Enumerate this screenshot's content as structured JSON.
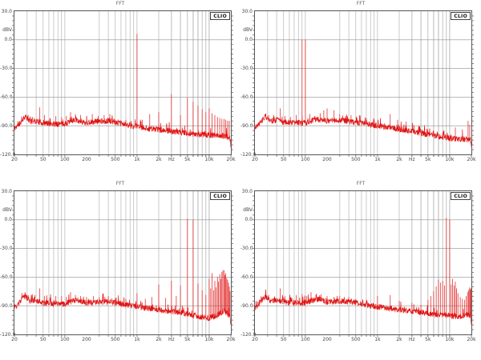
{
  "page": {
    "background": "#ffffff"
  },
  "plot_common": {
    "title": "FFT",
    "brand": "CLIO",
    "y_unit": "dBV",
    "y_ticks": [
      {
        "db": 30,
        "label": "30.0"
      },
      {
        "db": 0,
        "label": "0.0"
      },
      {
        "db": -30,
        "label": "-30.0"
      },
      {
        "db": -60,
        "label": "-60.0"
      },
      {
        "db": -90,
        "label": "-90.0"
      },
      {
        "db": -120,
        "label": "-120.0"
      }
    ],
    "x_ticks": [
      {
        "f": 20,
        "label": "20"
      },
      {
        "f": 50,
        "label": "50"
      },
      {
        "f": 100,
        "label": "100"
      },
      {
        "f": 200,
        "label": "200"
      },
      {
        "f": 500,
        "label": "500"
      },
      {
        "f": 1000,
        "label": "1k"
      },
      {
        "f": 2000,
        "label": "2k"
      },
      {
        "f": 3000,
        "label": "Hz"
      },
      {
        "f": 5000,
        "label": "5k"
      },
      {
        "f": 10000,
        "label": "10k"
      },
      {
        "f": 20000,
        "label": "20k"
      }
    ],
    "colors": {
      "trace": "#e01414",
      "grid_vertical": "#a8a8a8",
      "grid_horizontal": "#8f8f8f",
      "frame": "#555555",
      "text": "#444444",
      "title_text": "#606060"
    }
  },
  "chart_data": [
    {
      "type": "line",
      "position": "top-left",
      "title": "FFT",
      "xlabel": "Hz",
      "ylabel": "dBV",
      "x_log": true,
      "xlim": [
        20,
        20000
      ],
      "ylim": [
        -120,
        30
      ],
      "grid": true,
      "seed": 11,
      "jitter_db": 3,
      "floor": [
        [
          20,
          -93
        ],
        [
          24,
          -87
        ],
        [
          28,
          -80
        ],
        [
          33,
          -85
        ],
        [
          40,
          -85
        ],
        [
          50,
          -87
        ],
        [
          70,
          -88
        ],
        [
          100,
          -88
        ],
        [
          140,
          -84
        ],
        [
          200,
          -87
        ],
        [
          300,
          -85
        ],
        [
          450,
          -85
        ],
        [
          700,
          -89
        ],
        [
          1000,
          -91
        ],
        [
          1500,
          -93
        ],
        [
          2500,
          -95
        ],
        [
          4000,
          -97
        ],
        [
          7000,
          -99
        ],
        [
          12000,
          -100
        ],
        [
          17000,
          -101
        ],
        [
          19500,
          -103
        ],
        [
          20000,
          -113
        ]
      ],
      "peaks": [
        [
          31,
          -79
        ],
        [
          45,
          -71
        ],
        [
          52,
          -79
        ],
        [
          62,
          -82
        ],
        [
          75,
          -80
        ],
        [
          90,
          -81
        ],
        [
          105,
          -80
        ],
        [
          120,
          -76
        ],
        [
          140,
          -78
        ],
        [
          165,
          -79
        ],
        [
          200,
          -80
        ],
        [
          240,
          -78
        ],
        [
          290,
          -80
        ],
        [
          350,
          -79
        ],
        [
          420,
          -78
        ],
        [
          700,
          -84
        ],
        [
          1000,
          6
        ],
        [
          1180,
          -84
        ],
        [
          1500,
          -78
        ],
        [
          2000,
          -76
        ],
        [
          3000,
          -57
        ],
        [
          4000,
          -79
        ],
        [
          5000,
          -61
        ],
        [
          6000,
          -65
        ],
        [
          7000,
          -69
        ],
        [
          8000,
          -73
        ],
        [
          9000,
          -76
        ],
        [
          10000,
          -72
        ],
        [
          11000,
          -77
        ],
        [
          12000,
          -79
        ],
        [
          13000,
          -81
        ],
        [
          14000,
          -82
        ],
        [
          15000,
          -83
        ],
        [
          16000,
          -83
        ],
        [
          17000,
          -84
        ],
        [
          18000,
          -85
        ],
        [
          19000,
          -85
        ]
      ]
    },
    {
      "type": "line",
      "position": "top-right",
      "title": "FFT",
      "xlabel": "Hz",
      "ylabel": "dBV",
      "x_log": true,
      "xlim": [
        20,
        20000
      ],
      "ylim": [
        -120,
        30
      ],
      "grid": true,
      "seed": 22,
      "jitter_db": 3,
      "floor": [
        [
          20,
          -92
        ],
        [
          24,
          -86
        ],
        [
          28,
          -80
        ],
        [
          33,
          -85
        ],
        [
          40,
          -84
        ],
        [
          50,
          -86
        ],
        [
          70,
          -87
        ],
        [
          100,
          -87
        ],
        [
          140,
          -83
        ],
        [
          200,
          -85
        ],
        [
          300,
          -84
        ],
        [
          450,
          -86
        ],
        [
          700,
          -88
        ],
        [
          1000,
          -90
        ],
        [
          1500,
          -92
        ],
        [
          2500,
          -95
        ],
        [
          4000,
          -98
        ],
        [
          7000,
          -101
        ],
        [
          12000,
          -104
        ],
        [
          17000,
          -104
        ],
        [
          19500,
          -105
        ],
        [
          20000,
          -114
        ]
      ],
      "peaks": [
        [
          31,
          -79
        ],
        [
          45,
          -72
        ],
        [
          52,
          -80
        ],
        [
          62,
          -81
        ],
        [
          75,
          -79
        ],
        [
          90,
          0
        ],
        [
          100,
          0
        ],
        [
          115,
          -78
        ],
        [
          135,
          -80
        ],
        [
          160,
          -77
        ],
        [
          180,
          -74
        ],
        [
          200,
          -72
        ],
        [
          250,
          -74
        ],
        [
          300,
          -78
        ],
        [
          360,
          -80
        ],
        [
          430,
          -79
        ],
        [
          520,
          -82
        ],
        [
          700,
          -82
        ],
        [
          900,
          -84
        ],
        [
          1100,
          -85
        ],
        [
          1500,
          -78
        ],
        [
          1900,
          -84
        ],
        [
          2500,
          -86
        ],
        [
          3200,
          -90
        ],
        [
          4500,
          -92
        ],
        [
          6000,
          -95
        ],
        [
          8000,
          -97
        ],
        [
          12000,
          -92
        ],
        [
          15000,
          -94
        ],
        [
          18000,
          -85
        ],
        [
          19000,
          -89
        ]
      ]
    },
    {
      "type": "line",
      "position": "bottom-left",
      "title": "FFT",
      "xlabel": "Hz",
      "ylabel": "dBV",
      "x_log": true,
      "xlim": [
        20,
        20000
      ],
      "ylim": [
        -120,
        30
      ],
      "grid": true,
      "seed": 33,
      "jitter_db": 3,
      "floor": [
        [
          20,
          -93
        ],
        [
          24,
          -86
        ],
        [
          28,
          -80
        ],
        [
          33,
          -85
        ],
        [
          40,
          -85
        ],
        [
          50,
          -87
        ],
        [
          70,
          -88
        ],
        [
          100,
          -88
        ],
        [
          140,
          -84
        ],
        [
          200,
          -87
        ],
        [
          300,
          -86
        ],
        [
          450,
          -86
        ],
        [
          700,
          -89
        ],
        [
          1000,
          -91
        ],
        [
          1500,
          -93
        ],
        [
          2500,
          -95
        ],
        [
          4000,
          -97
        ],
        [
          7000,
          -101
        ],
        [
          10000,
          -103
        ],
        [
          13000,
          -100
        ],
        [
          16000,
          -95
        ],
        [
          18000,
          -98
        ],
        [
          19500,
          -102
        ],
        [
          20000,
          -112
        ]
      ],
      "peaks": [
        [
          31,
          -79
        ],
        [
          45,
          -72
        ],
        [
          52,
          -80
        ],
        [
          62,
          -82
        ],
        [
          75,
          -80
        ],
        [
          90,
          -80
        ],
        [
          105,
          -81
        ],
        [
          120,
          -76
        ],
        [
          140,
          -79
        ],
        [
          165,
          -80
        ],
        [
          200,
          -81
        ],
        [
          250,
          -80
        ],
        [
          300,
          -81
        ],
        [
          400,
          -80
        ],
        [
          500,
          -82
        ],
        [
          700,
          -83
        ],
        [
          1000,
          -77
        ],
        [
          1300,
          -83
        ],
        [
          1600,
          -81
        ],
        [
          2000,
          -68
        ],
        [
          2500,
          -82
        ],
        [
          3000,
          -64
        ],
        [
          3500,
          -80
        ],
        [
          4000,
          -69
        ],
        [
          5000,
          1
        ],
        [
          6000,
          0
        ],
        [
          7000,
          -67
        ],
        [
          8000,
          -74
        ],
        [
          9000,
          -79
        ],
        [
          10000,
          -62
        ],
        [
          10500,
          -72
        ],
        [
          11000,
          -56
        ],
        [
          11500,
          -74
        ],
        [
          12000,
          -64
        ],
        [
          12500,
          -71
        ],
        [
          13000,
          -60
        ],
        [
          13500,
          -65
        ],
        [
          14000,
          -57
        ],
        [
          14500,
          -62
        ],
        [
          15000,
          -55
        ],
        [
          15500,
          -53
        ],
        [
          16000,
          -53
        ],
        [
          16500,
          -58
        ],
        [
          17000,
          -56
        ],
        [
          17500,
          -61
        ],
        [
          18000,
          -63
        ],
        [
          18500,
          -66
        ],
        [
          19000,
          -70
        ],
        [
          19500,
          -75
        ]
      ]
    },
    {
      "type": "line",
      "position": "bottom-right",
      "title": "FFT",
      "xlabel": "Hz",
      "ylabel": "dBV",
      "x_log": true,
      "xlim": [
        20,
        20000
      ],
      "ylim": [
        -120,
        30
      ],
      "grid": true,
      "seed": 44,
      "jitter_db": 3,
      "floor": [
        [
          20,
          -92
        ],
        [
          24,
          -86
        ],
        [
          28,
          -80
        ],
        [
          33,
          -85
        ],
        [
          40,
          -84
        ],
        [
          50,
          -86
        ],
        [
          70,
          -87
        ],
        [
          100,
          -87
        ],
        [
          140,
          -83
        ],
        [
          200,
          -86
        ],
        [
          300,
          -85
        ],
        [
          450,
          -86
        ],
        [
          700,
          -89
        ],
        [
          1000,
          -91
        ],
        [
          1500,
          -93
        ],
        [
          2500,
          -95
        ],
        [
          4000,
          -97
        ],
        [
          6000,
          -99
        ],
        [
          9000,
          -100
        ],
        [
          12000,
          -101
        ],
        [
          15000,
          -101
        ],
        [
          17500,
          -99
        ],
        [
          19500,
          -101
        ],
        [
          20000,
          -113
        ]
      ],
      "peaks": [
        [
          31,
          -79
        ],
        [
          45,
          -72
        ],
        [
          52,
          -80
        ],
        [
          62,
          -81
        ],
        [
          75,
          -79
        ],
        [
          90,
          -78
        ],
        [
          105,
          -80
        ],
        [
          120,
          -76
        ],
        [
          140,
          -79
        ],
        [
          165,
          -78
        ],
        [
          200,
          -80
        ],
        [
          250,
          -81
        ],
        [
          300,
          -80
        ],
        [
          400,
          -81
        ],
        [
          500,
          -83
        ],
        [
          700,
          -84
        ],
        [
          1000,
          -80
        ],
        [
          1500,
          -79
        ],
        [
          2000,
          -85
        ],
        [
          3000,
          -87
        ],
        [
          4000,
          -89
        ],
        [
          5000,
          -84
        ],
        [
          5500,
          -80
        ],
        [
          6000,
          -75
        ],
        [
          6500,
          -70
        ],
        [
          7000,
          -63
        ],
        [
          7500,
          -66
        ],
        [
          8000,
          -64
        ],
        [
          8500,
          -69
        ],
        [
          9000,
          2
        ],
        [
          10000,
          0
        ],
        [
          10500,
          -68
        ],
        [
          11000,
          -62
        ],
        [
          11500,
          -69
        ],
        [
          12000,
          -65
        ],
        [
          12500,
          -72
        ],
        [
          13000,
          -77
        ],
        [
          14000,
          -81
        ],
        [
          15000,
          -83
        ],
        [
          16000,
          -84
        ],
        [
          17000,
          -80
        ],
        [
          17700,
          -76
        ],
        [
          18300,
          -74
        ],
        [
          18900,
          -71
        ],
        [
          19300,
          -73
        ],
        [
          19700,
          -72
        ]
      ]
    }
  ]
}
